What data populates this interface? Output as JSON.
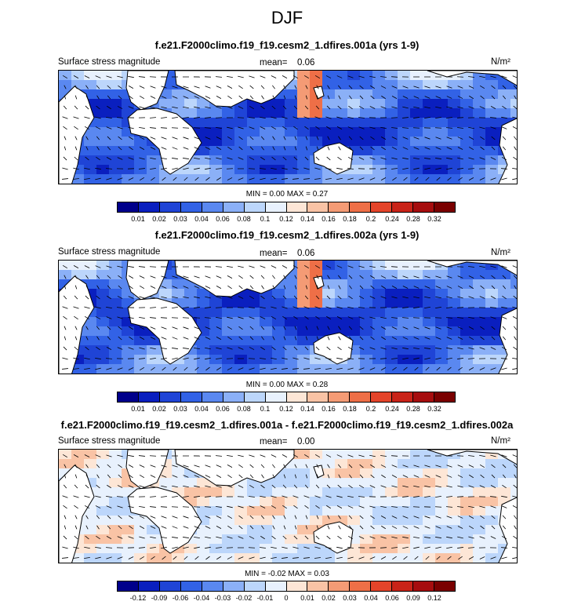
{
  "figure": {
    "title": "DJF"
  },
  "panels": [
    {
      "title": "f.e21.F2000climo.f19_f19.cesm2_1.dfires.001a (yrs 1-9)",
      "left_label": "Surface stress magnitude",
      "mean_label": "mean=",
      "mean_value": "0.06",
      "units": "N/m²",
      "min_max": "MIN =   0.00 MAX =   0.27",
      "kind": "magnitude"
    },
    {
      "title": "f.e21.F2000climo.f19_f19.cesm2_1.dfires.002a (yrs 1-9)",
      "left_label": "Surface stress magnitude",
      "mean_label": "mean=",
      "mean_value": "0.06",
      "units": "N/m²",
      "min_max": "MIN =   0.00 MAX =   0.28",
      "kind": "magnitude"
    },
    {
      "title": "f.e21.F2000climo.f19_f19.cesm2_1.dfires.001a - f.e21.F2000climo.f19_f19.cesm2_1.dfires.002a",
      "left_label": "Surface stress magnitude",
      "mean_label": "mean=",
      "mean_value": "0.00",
      "units": "N/m²",
      "min_max": "MIN =  -0.02 MAX =   0.03",
      "kind": "difference"
    }
  ],
  "colorbars": {
    "magnitude": {
      "colors": [
        "#00008b",
        "#0a1fbf",
        "#1f44d6",
        "#3262e6",
        "#5a88f0",
        "#8bb0f7",
        "#bcd6fb",
        "#e8f1fd",
        "#fde6d6",
        "#f9c3a5",
        "#f49b75",
        "#ee6f47",
        "#e4442a",
        "#c92318",
        "#a60d0e",
        "#7a0000"
      ],
      "labels": [
        "0.01",
        "0.02",
        "0.03",
        "0.04",
        "0.06",
        "0.08",
        "0.1",
        "0.12",
        "0.14",
        "0.16",
        "0.18",
        "0.2",
        "0.24",
        "0.28",
        "0.32"
      ]
    },
    "difference": {
      "colors": [
        "#00008b",
        "#0a1fbf",
        "#1f44d6",
        "#3262e6",
        "#5a88f0",
        "#8bb0f7",
        "#bcd6fb",
        "#e8f1fd",
        "#fde6d6",
        "#f9c3a5",
        "#f49b75",
        "#ee6f47",
        "#e4442a",
        "#c92318",
        "#a60d0e",
        "#7a0000"
      ],
      "labels": [
        "-0.12",
        "-0.09",
        "-0.06",
        "-0.04",
        "-0.03",
        "-0.02",
        "-0.01",
        "0",
        "0.01",
        "0.02",
        "0.03",
        "0.04",
        "0.06",
        "0.09",
        "0.12"
      ]
    }
  },
  "chart_data": {
    "type": "heatmap",
    "title": "DJF",
    "variable": "Surface stress magnitude",
    "units": "N/m²",
    "series": [
      {
        "name": "f.e21.F2000climo.f19_f19.cesm2_1.dfires.001a (yrs 1-9)",
        "mean": 0.06,
        "min": 0.0,
        "max": 0.27
      },
      {
        "name": "f.e21.F2000climo.f19_f19.cesm2_1.dfires.002a (yrs 1-9)",
        "mean": 0.06,
        "min": 0.0,
        "max": 0.28
      },
      {
        "name": "f.e21.F2000climo.f19_f19.cesm2_1.dfires.001a - f.e21.F2000climo.f19_f19.cesm2_1.dfires.002a",
        "mean": 0.0,
        "min": -0.02,
        "max": 0.03
      }
    ],
    "magnitude_levels": [
      0.01,
      0.02,
      0.03,
      0.04,
      0.06,
      0.08,
      0.1,
      0.12,
      0.14,
      0.16,
      0.18,
      0.2,
      0.24,
      0.28,
      0.32
    ],
    "difference_levels": [
      -0.12,
      -0.09,
      -0.06,
      -0.04,
      -0.03,
      -0.02,
      -0.01,
      0,
      0.01,
      0.02,
      0.03,
      0.04,
      0.06,
      0.09,
      0.12
    ]
  }
}
